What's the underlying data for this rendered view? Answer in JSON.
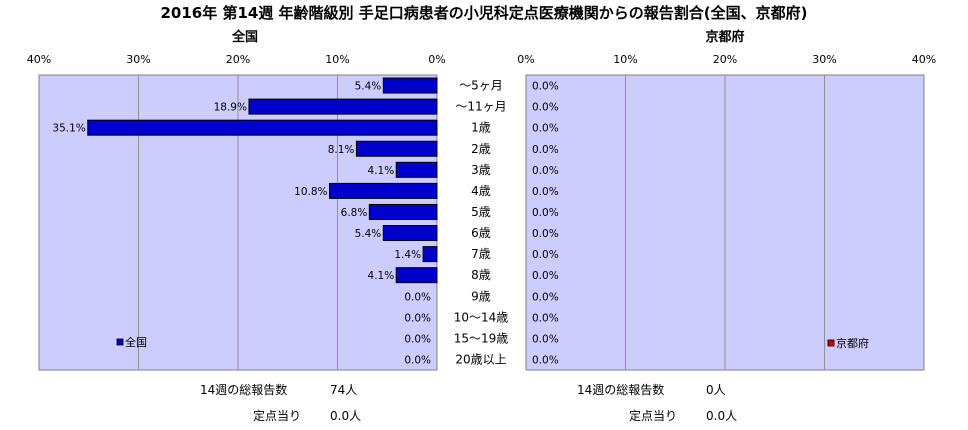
{
  "title": "2016年 第14週 年齢階級別 手足口病患者の小児科定点医療機関からの報告割合(全国、京都府)",
  "chart_data": [
    {
      "type": "bar",
      "orientation": "horizontal",
      "direction": "right-to-left",
      "subtitle": "全国",
      "categories": [
        "～5ヶ月",
        "～11ヶ月",
        "1歳",
        "2歳",
        "3歳",
        "4歳",
        "5歳",
        "6歳",
        "7歳",
        "8歳",
        "9歳",
        "10～14歳",
        "15～19歳",
        "20歳以上"
      ],
      "series": [
        {
          "name": "全国",
          "color": "#0000cc",
          "values": [
            5.4,
            18.9,
            35.1,
            8.1,
            4.1,
            10.8,
            6.8,
            5.4,
            1.4,
            4.1,
            0.0,
            0.0,
            0.0,
            0.0
          ],
          "value_labels": [
            "5.4%",
            "18.9%",
            "35.1%",
            "8.1%",
            "4.1%",
            "10.8%",
            "6.8%",
            "5.4%",
            "1.4%",
            "4.1%",
            "0.0%",
            "0.0%",
            "0.0%",
            "0.0%"
          ]
        }
      ],
      "xlim": [
        0,
        40
      ],
      "ticks": [
        "0%",
        "10%",
        "20%",
        "30%",
        "40%"
      ],
      "legend_position": "bottom-left",
      "grid": true,
      "plot_background": "#ccccff"
    },
    {
      "type": "bar",
      "orientation": "horizontal",
      "direction": "left-to-right",
      "subtitle": "京都府",
      "categories": [
        "～5ヶ月",
        "～11ヶ月",
        "1歳",
        "2歳",
        "3歳",
        "4歳",
        "5歳",
        "6歳",
        "7歳",
        "8歳",
        "9歳",
        "10～14歳",
        "15～19歳",
        "20歳以上"
      ],
      "series": [
        {
          "name": "京都府",
          "color": "#cc0000",
          "values": [
            0,
            0,
            0,
            0,
            0,
            0,
            0,
            0,
            0,
            0,
            0,
            0,
            0,
            0
          ],
          "value_labels": [
            "0.0%",
            "0.0%",
            "0.0%",
            "0.0%",
            "0.0%",
            "0.0%",
            "0.0%",
            "0.0%",
            "0.0%",
            "0.0%",
            "0.0%",
            "0.0%",
            "0.0%",
            "0.0%"
          ]
        }
      ],
      "xlim": [
        0,
        40
      ],
      "ticks": [
        "0%",
        "10%",
        "20%",
        "30%",
        "40%"
      ],
      "legend_position": "bottom-right",
      "grid": true,
      "plot_background": "#ccccff"
    }
  ],
  "footer": {
    "national": {
      "reports_label": "14週の総報告数",
      "reports_value": "74人",
      "per_site_label": "定点当り",
      "per_site_value": "0.0人"
    },
    "kyoto": {
      "reports_label": "14週の総報告数",
      "reports_value": "0人",
      "per_site_label": "定点当り",
      "per_site_value": "0.0人"
    }
  }
}
